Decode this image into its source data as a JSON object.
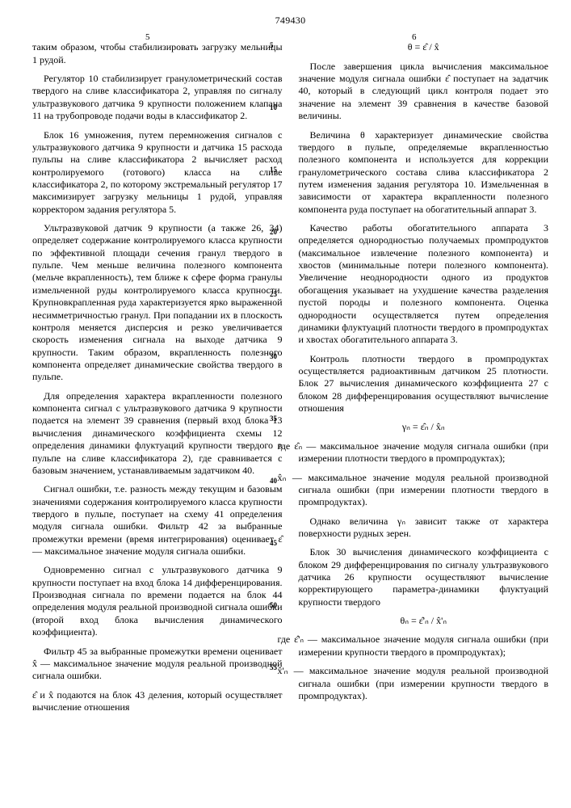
{
  "doc_number": "749430",
  "col_left_mark": "5",
  "col_right_mark": "6",
  "line_numbers": [
    "5",
    "10",
    "15",
    "20",
    "25",
    "30",
    "35",
    "40",
    "45",
    "50",
    "55"
  ],
  "left": {
    "p1": "таким образом, чтобы стабилизировать загрузку мельницы 1 рудой.",
    "p2": "Регулятор 10 стабилизирует гранулометрический состав твердого на сливе классификатора 2, управляя по сигналу ультразвукового датчика 9 крупности положением клапана 11 на трубопроводе подачи воды в классификатор 2.",
    "p3": "Блок 16 умножения, путем перемножения сигналов с ультразвукового датчика 9 крупности и датчика 15 расхода пульпы на сливе классификатора 2 вычисляет расход контролируемого (готового) класса на сливе классификатора 2, по которому экстремальный регулятор 17 максимизирует загрузку мельницы 1 рудой, управляя корректором задания регулятора 5.",
    "p4": "Ультразвуковой датчик 9 крупности (а также 26, 34) определяет содержание контролируемого класса крупности по эффективной площади сечения гранул твердого в пульпе. Чем меньше величина полезного компонента (мельче вкрапленность), тем ближе к сфере форма гранулы измельченной руды контролируемого класса крупности. Крупновкрапленная руда характеризуется ярко выраженной несимметричностью гранул. При попадании их в плоскость контроля меняется дисперсия и резко увеличивается скорость изменения сигнала на выходе датчика 9 крупности. Таким образом, вкрапленность полезного компонента определяет динамические свойства твердого в пульпе.",
    "p5": "Для определения характера вкрапленности полезного компонента сигнал с ультразвукового датчика 9 крупности подается на элемент 39 сравнения (первый вход блока 13 вычисления динамического коэффициента схемы 12 определения динамики флуктуаций крупности твердого в пульпе на сливе классификатора 2), где сравнивается с базовым значением, устанавливаемым задатчиком 40.",
    "p6": "Сигнал ошибки, т.е. разность между текущим и базовым значениями содержания контролируемого класса крупности твердого в пульпе, поступает на схему 41 определения модуля сигнала ошибки. Фильтр 42 за выбранные промежутки времени (время интегрирования) оценивает ε̂ — максимальное значение модуля сигнала ошибки.",
    "p7": "Одновременно сигнал с ультразвукового датчика 9 крупности поступает на вход блока 14 дифференцирования. Производная сигнала по времени подается на блок 44 определения модуля реальной производной сигнала ошибки (второй вход блока вычисления динамического коэффициента).",
    "p8": "Фильтр 45 за выбранные промежутки времени оценивает x̂ — максимальное значение модуля реальной производной сигнала ошибки."
  },
  "right": {
    "p1": "ε̂ и x̂ подаются на блок 43 деления, который осуществляет вычисление отношения",
    "f1": "θ = ε̂ / x̂",
    "p2": "После завершения цикла вычисления максимальное значение модуля сигнала ошибки ε̂ поступает на задатчик 40, который в следующий цикл контроля подает это значение на элемент 39 сравнения в качестве базовой величины.",
    "p3": "Величина θ характеризует динамические свойства твердого в пульпе, определяемые вкрапленностью полезного компонента и используется для коррекции гранулометрического состава слива классификатора 2 путем изменения задания регулятора 10. Измельченная в зависимости от характера вкрапленности полезного компонента руда поступает на обогатительный аппарат 3.",
    "p4": "Качество работы обогатительного аппарата 3 определяется однородностью получаемых промпродуктов (максимальное извлечение полезного компонента) и хвостов (минимальные потери полезного компонента). Увеличение неоднородности одного из продуктов обогащения указывает на ухудшение качества разделения пустой породы и полезного компонента. Оценка однородности осуществляется путем определения динамики флуктуаций плотности твердого в промпродуктах и хвостах обогатительного аппарата 3.",
    "p5": "Контроль плотности твердого в промпродуктах осуществляется радиоактивным датчиком 25 плотности. Блок 27 вычисления динамического коэффициента 27 с блоком 28 дифференцирования осуществляют вычисление отношения",
    "f2": "γₙ = ε̂ₙ / x̂ₙ",
    "p6a": "где ε̂ₙ — максимальное значение модуля сигнала ошибки (при измерении плотности твердого в промпродуктах);",
    "p6b": "x̂ₙ — максимальное значение модуля реальной производной сигнала ошибки (при измерении плотности твердого в промпродуктах).",
    "p7": "Однако величина γₙ зависит также от характера поверхности рудных зерен.",
    "p8": "Блок 30 вычисления динамического коэффициента с блоком 29 дифференцирования по сигналу ультразвукового датчика 26 крупности осуществляют вычисление корректирующего параметра-динамики флуктуаций крупности твердого",
    "f3": "θₙ = ε̂'ₙ / x̂'ₙ",
    "p9a": "где ε̂'ₙ — максимальное значение модуля сигнала ошибки (при измерении крупности твердого в промпродуктах);",
    "p9b": "x̂'ₙ — максимальное значение модуля реальной производной сигнала ошибки (при измерении крупности твердого в промпродуктах)."
  }
}
